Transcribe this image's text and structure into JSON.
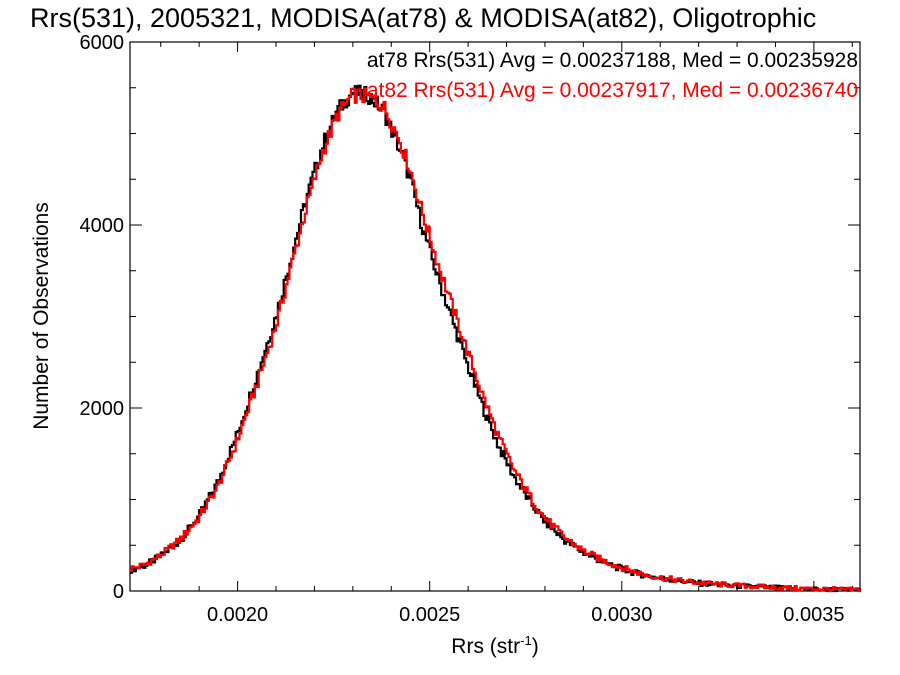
{
  "chart_data": {
    "type": "line",
    "title": "Rrs(531), 2005321, MODISA(at78) & MODISA(at82), Oligotrophic",
    "xlabel": "Rrs (str",
    "xlabel_sup": "-1",
    "xlabel_close": ")",
    "ylabel": "Number of Observations",
    "xlim": [
      0.00172,
      0.00362
    ],
    "ylim": [
      0,
      6000
    ],
    "x_ticks": [
      0.002,
      0.0025,
      0.003,
      0.0035
    ],
    "x_tick_labels": [
      "0.0020",
      "0.0025",
      "0.0030",
      "0.0035"
    ],
    "y_ticks": [
      0,
      2000,
      4000,
      6000
    ],
    "y_tick_labels": [
      "0",
      "2000",
      "4000",
      "6000"
    ],
    "grid": false,
    "legend_position": "top-right",
    "colors": {
      "at78": "#000000",
      "at82": "#ff0000"
    },
    "series": [
      {
        "key": "at78",
        "legend": "at78 Rrs(531) Avg = 0.00237188, Med = 0.00235928",
        "x": [
          0.00172,
          0.00176,
          0.0018,
          0.00185,
          0.0019,
          0.00195,
          0.002,
          0.00205,
          0.0021,
          0.00214,
          0.00218,
          0.00222,
          0.00226,
          0.0023,
          0.00234,
          0.00238,
          0.00242,
          0.00245,
          0.00248,
          0.00252,
          0.00256,
          0.0026,
          0.00264,
          0.00268,
          0.00272,
          0.00276,
          0.0028,
          0.00285,
          0.0029,
          0.00295,
          0.003,
          0.00305,
          0.0031,
          0.0032,
          0.0033,
          0.0034,
          0.0035,
          0.00362
        ],
        "y": [
          230,
          280,
          380,
          550,
          820,
          1200,
          1720,
          2350,
          3000,
          3650,
          4300,
          4850,
          5250,
          5450,
          5420,
          5250,
          4850,
          4500,
          4000,
          3450,
          2950,
          2450,
          2000,
          1580,
          1250,
          980,
          760,
          560,
          420,
          320,
          240,
          180,
          140,
          85,
          55,
          35,
          20,
          10
        ]
      },
      {
        "key": "at82",
        "legend": "at82 Rrs(531) Avg = 0.00237917, Med = 0.00236740",
        "x": [
          0.00172,
          0.00176,
          0.0018,
          0.00185,
          0.0019,
          0.00195,
          0.002,
          0.00205,
          0.0021,
          0.00214,
          0.00218,
          0.00222,
          0.00226,
          0.0023,
          0.00234,
          0.00238,
          0.00242,
          0.00245,
          0.00248,
          0.00252,
          0.00256,
          0.0026,
          0.00264,
          0.00268,
          0.00272,
          0.00276,
          0.0028,
          0.00285,
          0.0029,
          0.00295,
          0.003,
          0.00305,
          0.0031,
          0.0032,
          0.0033,
          0.0034,
          0.0035,
          0.00362
        ],
        "y": [
          240,
          290,
          390,
          560,
          800,
          1150,
          1650,
          2250,
          2900,
          3550,
          4200,
          4780,
          5200,
          5420,
          5400,
          5300,
          4950,
          4600,
          4150,
          3600,
          3100,
          2600,
          2120,
          1680,
          1320,
          1040,
          800,
          590,
          440,
          335,
          255,
          190,
          145,
          90,
          60,
          38,
          22,
          12
        ]
      }
    ]
  }
}
